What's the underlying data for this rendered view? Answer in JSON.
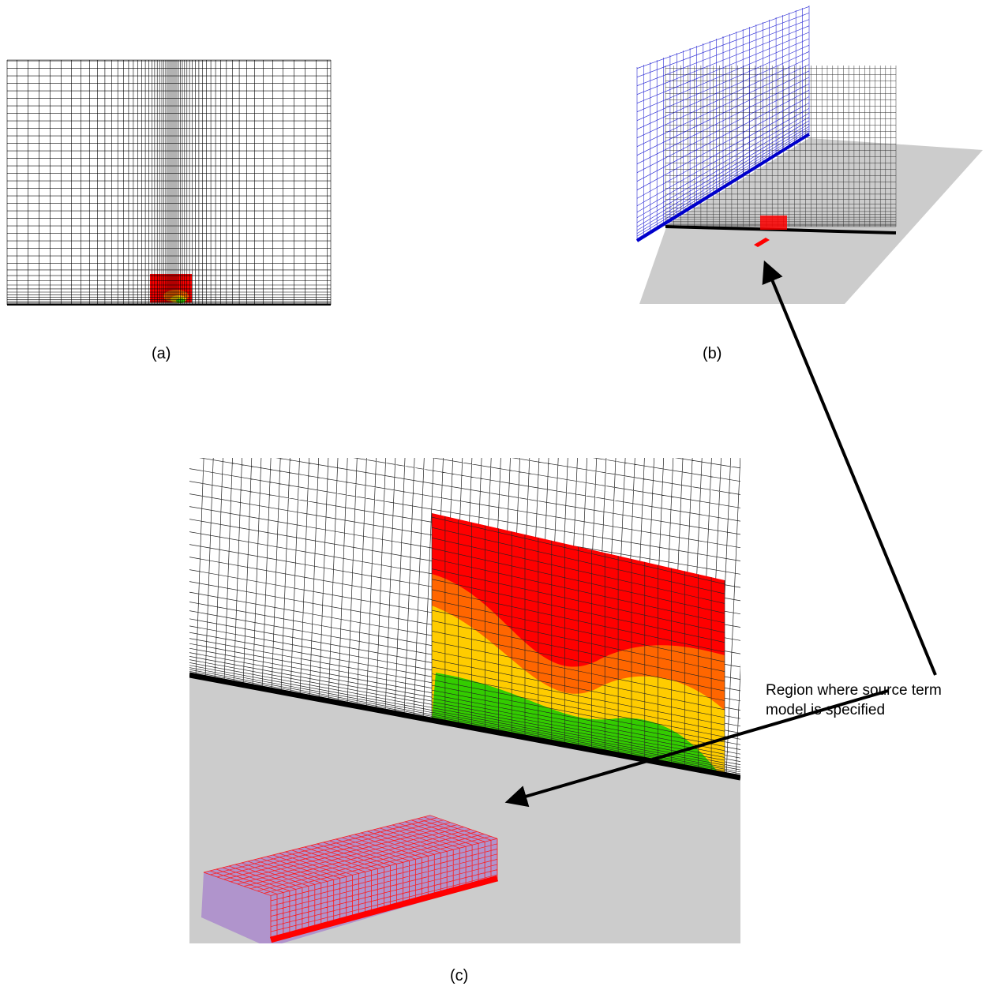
{
  "captions": {
    "a": "(a)",
    "b": "(b)",
    "c": "(c)"
  },
  "annotation": {
    "line1": "Region where source term",
    "line2": "model is specified"
  },
  "colors": {
    "grid_line": "#000000",
    "panel_background": "#cccccc",
    "source_region": "#ff0000",
    "inlet_plane": "#0000cc",
    "contour_red": "#ff0000",
    "contour_orange": "#ff6600",
    "contour_yellow": "#ffcc00",
    "contour_green": "#33cc00",
    "source_volume": "#9966cc"
  }
}
